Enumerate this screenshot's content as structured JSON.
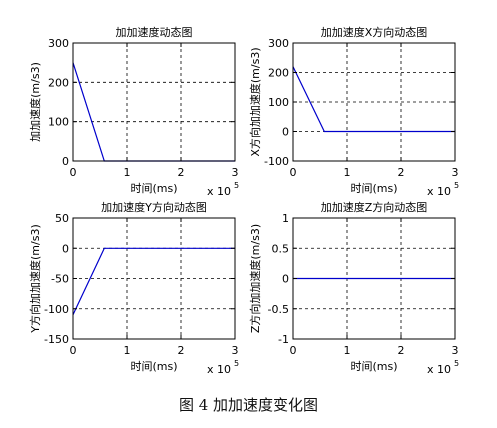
{
  "caption": "图 4  加加速度变化图",
  "chart_data": [
    {
      "type": "line",
      "title": "加加速度动态图",
      "xlabel": "时间(ms)",
      "ylabel": "加加速度(m/s3)",
      "x_exponent_base": "x 10",
      "x_exponent_power": "5",
      "xlim": [
        0,
        3
      ],
      "ylim": [
        0,
        300
      ],
      "xticks": [
        0,
        1,
        2,
        3
      ],
      "yticks": [
        0,
        100,
        200,
        300
      ],
      "grid": true,
      "line_color": "#0000cc",
      "series": [
        {
          "x": [
            0,
            0.58,
            3
          ],
          "y": [
            250,
            0,
            0
          ]
        }
      ]
    },
    {
      "type": "line",
      "title": "加加速度X方向动态图",
      "xlabel": "时间(ms)",
      "ylabel": "X方向加加速度(m/s3)",
      "x_exponent_base": "x 10",
      "x_exponent_power": "5",
      "xlim": [
        0,
        3
      ],
      "ylim": [
        -100,
        300
      ],
      "xticks": [
        0,
        1,
        2,
        3
      ],
      "yticks": [
        -100,
        0,
        100,
        200,
        300
      ],
      "grid": true,
      "line_color": "#0000cc",
      "series": [
        {
          "x": [
            0,
            0.58,
            3
          ],
          "y": [
            220,
            0,
            0
          ]
        }
      ]
    },
    {
      "type": "line",
      "title": "加加速度Y方向动态图",
      "xlabel": "时间(ms)",
      "ylabel": "Y方向加加速度(m/s3)",
      "x_exponent_base": "x 10",
      "x_exponent_power": "5",
      "xlim": [
        0,
        3
      ],
      "ylim": [
        -150,
        50
      ],
      "xticks": [
        0,
        1,
        2,
        3
      ],
      "yticks": [
        -150,
        -100,
        -50,
        0,
        50
      ],
      "grid": true,
      "line_color": "#0000cc",
      "series": [
        {
          "x": [
            0,
            0.58,
            3
          ],
          "y": [
            -110,
            0,
            0
          ]
        }
      ]
    },
    {
      "type": "line",
      "title": "加加速度Z方向动态图",
      "xlabel": "时间(ms)",
      "ylabel": "Z方向加加速度(m/s3)",
      "x_exponent_base": "x 10",
      "x_exponent_power": "5",
      "xlim": [
        0,
        3
      ],
      "ylim": [
        -1,
        1
      ],
      "xticks": [
        0,
        1,
        2,
        3
      ],
      "yticks": [
        -1,
        -0.5,
        0,
        0.5,
        1
      ],
      "grid": true,
      "line_color": "#0000cc",
      "series": [
        {
          "x": [
            0,
            3
          ],
          "y": [
            0,
            0
          ]
        }
      ]
    }
  ]
}
